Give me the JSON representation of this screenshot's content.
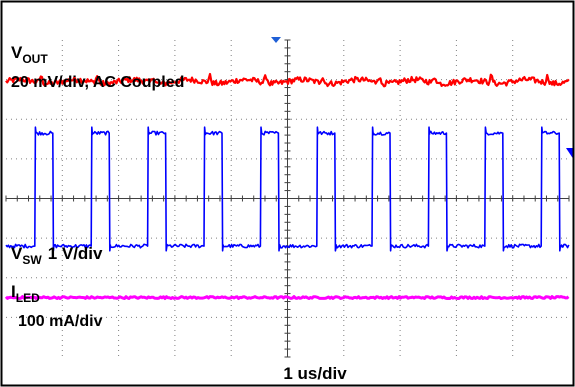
{
  "chart_data": {
    "type": "line",
    "title": "",
    "xlabel": "1 us/div",
    "grid": true,
    "divisions": {
      "horizontal": 10,
      "vertical": 8
    },
    "series": [
      {
        "name": "VOUT",
        "sub": "OUT",
        "scale": "20 mV/div, AC Coupled",
        "color": "#ff0000",
        "waveform": "ripple",
        "level_div": 2.95,
        "noise_div": 0.07,
        "spikes_at_div": [
          0.62,
          1.62,
          2.62,
          3.62,
          4.62,
          5.62,
          6.62,
          7.62,
          8.62,
          9.62
        ]
      },
      {
        "name": "VSW",
        "sub": "SW",
        "scale": "1 V/div",
        "color": "#0000ff",
        "waveform": "square",
        "high_div": 1.65,
        "low_div": -1.2,
        "period_div": 1.0,
        "rising_edges_div": [
          0.5,
          1.5,
          2.5,
          3.5,
          4.5,
          5.5,
          6.5,
          7.5,
          8.5,
          9.5
        ],
        "falling_edges_div": [
          0.82,
          1.82,
          2.82,
          3.82,
          4.82,
          5.82,
          6.82,
          7.82,
          8.82,
          9.82
        ]
      },
      {
        "name": "ILED",
        "sub": "LED",
        "scale": "100 mA/div",
        "color": "#ff00ff",
        "waveform": "dc",
        "level_div": -2.5
      }
    ]
  },
  "labels": {
    "vout_main": "V",
    "vout_sub": "OUT",
    "vout_scale": "20 mV/div, AC Coupled",
    "vsw_main": "V",
    "vsw_sub": "SW",
    "vsw_scale": "1 V/div",
    "iled_main": "I",
    "iled_sub": "LED",
    "iled_scale": "100 mA/div",
    "time_scale": "1 us/div"
  },
  "colors": {
    "grid": "#808080",
    "trigger": "#1f5fd6",
    "frame": "#000000"
  }
}
